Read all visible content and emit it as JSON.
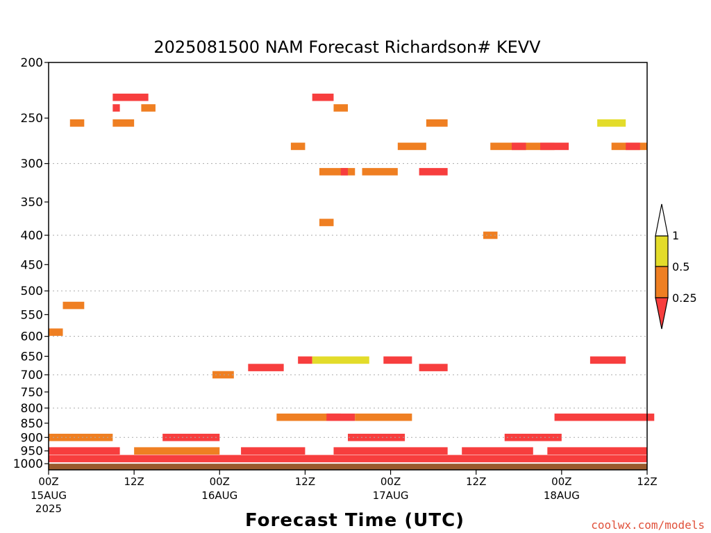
{
  "colors": {
    "lt_025": "#f73e3e",
    "c025_05": "#ef7f22",
    "c05_1": "#e3dc2a",
    "ground": "#9a5a2c",
    "grid": "#aaaaaa",
    "credit": "#e0503a"
  },
  "chart_data": {
    "type": "heatmap",
    "title": "2025081500 NAM Forecast Richardson# KEVV",
    "xlabel": "Forecast Time (UTC)",
    "ylabel": "",
    "y_scale": "log pressure (reversed)",
    "ylim": [
      1025,
      200
    ],
    "y_ticks": [
      200,
      250,
      300,
      350,
      400,
      450,
      500,
      550,
      600,
      650,
      700,
      750,
      800,
      850,
      900,
      950,
      1000
    ],
    "y_tick_labels": [
      "200",
      "250",
      "300",
      "350",
      "400",
      "450",
      "500",
      "550",
      "600",
      "650",
      "700",
      "750",
      "800",
      "850",
      "900",
      "950",
      "1000"
    ],
    "y_gridlines": [
      300,
      400,
      500,
      600,
      700,
      800,
      900
    ],
    "x_start": "2025-08-15 00Z",
    "xlim_hours": [
      0,
      84
    ],
    "x_ticks": [
      {
        "hour": 0,
        "label": "00Z",
        "sub": "15AUG",
        "sub2": "2025"
      },
      {
        "hour": 12,
        "label": "12Z",
        "sub": "",
        "sub2": ""
      },
      {
        "hour": 24,
        "label": "00Z",
        "sub": "16AUG",
        "sub2": ""
      },
      {
        "hour": 36,
        "label": "12Z",
        "sub": "",
        "sub2": ""
      },
      {
        "hour": 48,
        "label": "00Z",
        "sub": "17AUG",
        "sub2": ""
      },
      {
        "hour": 60,
        "label": "12Z",
        "sub": "",
        "sub2": ""
      },
      {
        "hour": 72,
        "label": "00Z",
        "sub": "18AUG",
        "sub2": ""
      },
      {
        "hour": 84,
        "label": "12Z",
        "sub": "",
        "sub2": ""
      }
    ],
    "legend": {
      "placement": "right",
      "boundaries": [
        0.25,
        0.5,
        1
      ],
      "labels": [
        "1",
        "0.5",
        "0.25"
      ],
      "categories": [
        "< 0.25",
        "0.25 - 0.5",
        "0.5 - 1"
      ]
    },
    "ground_level_hpa": 1000,
    "levels": [
      {
        "p": 230,
        "cells": [
          [
            9,
            14,
            3
          ],
          [
            37,
            40,
            3
          ]
        ]
      },
      {
        "p": 240,
        "cells": [
          [
            9,
            10,
            3
          ],
          [
            13,
            15,
            2
          ],
          [
            40,
            42,
            2
          ]
        ]
      },
      {
        "p": 255,
        "cells": [
          [
            3,
            5,
            2
          ],
          [
            9,
            12,
            2
          ],
          [
            53,
            56,
            2
          ],
          [
            77,
            81,
            1
          ]
        ]
      },
      {
        "p": 280,
        "cells": [
          [
            34,
            36,
            2
          ],
          [
            49,
            53,
            2
          ],
          [
            62,
            71,
            2
          ],
          [
            65,
            67,
            3
          ],
          [
            69,
            73,
            3
          ],
          [
            79,
            84,
            2
          ],
          [
            81,
            83,
            3
          ]
        ]
      },
      {
        "p": 310,
        "cells": [
          [
            38,
            43,
            2
          ],
          [
            41,
            42,
            3
          ],
          [
            44,
            49,
            2
          ],
          [
            52,
            56,
            3
          ]
        ]
      },
      {
        "p": 380,
        "cells": [
          [
            38,
            40,
            2
          ]
        ]
      },
      {
        "p": 400,
        "cells": [
          [
            61,
            63,
            2
          ]
        ]
      },
      {
        "p": 530,
        "cells": [
          [
            2,
            5,
            2
          ]
        ]
      },
      {
        "p": 590,
        "cells": [
          [
            0,
            2,
            2
          ]
        ]
      },
      {
        "p": 660,
        "cells": [
          [
            35,
            37,
            3
          ],
          [
            37,
            45,
            1
          ],
          [
            47,
            51,
            3
          ],
          [
            76,
            81,
            3
          ]
        ]
      },
      {
        "p": 680,
        "cells": [
          [
            28,
            33,
            3
          ],
          [
            52,
            56,
            3
          ]
        ]
      },
      {
        "p": 700,
        "cells": [
          [
            23,
            26,
            2
          ]
        ]
      },
      {
        "p": 830,
        "cells": [
          [
            32,
            41,
            2
          ],
          [
            39,
            43,
            3
          ],
          [
            43,
            51,
            2
          ],
          [
            71,
            85,
            3
          ]
        ]
      },
      {
        "p": 900,
        "cells": [
          [
            0,
            9,
            2
          ],
          [
            16,
            24,
            3
          ],
          [
            42,
            50,
            3
          ],
          [
            64,
            72,
            3
          ]
        ]
      },
      {
        "p": 950,
        "cells": [
          [
            0,
            10,
            3
          ],
          [
            12,
            24,
            2
          ],
          [
            27,
            36,
            3
          ],
          [
            40,
            56,
            3
          ],
          [
            58,
            68,
            3
          ],
          [
            70,
            84,
            3
          ]
        ]
      },
      {
        "p": 980,
        "cells": [
          [
            0,
            84,
            3
          ]
        ]
      }
    ]
  },
  "credit": "coolwx.com/models"
}
